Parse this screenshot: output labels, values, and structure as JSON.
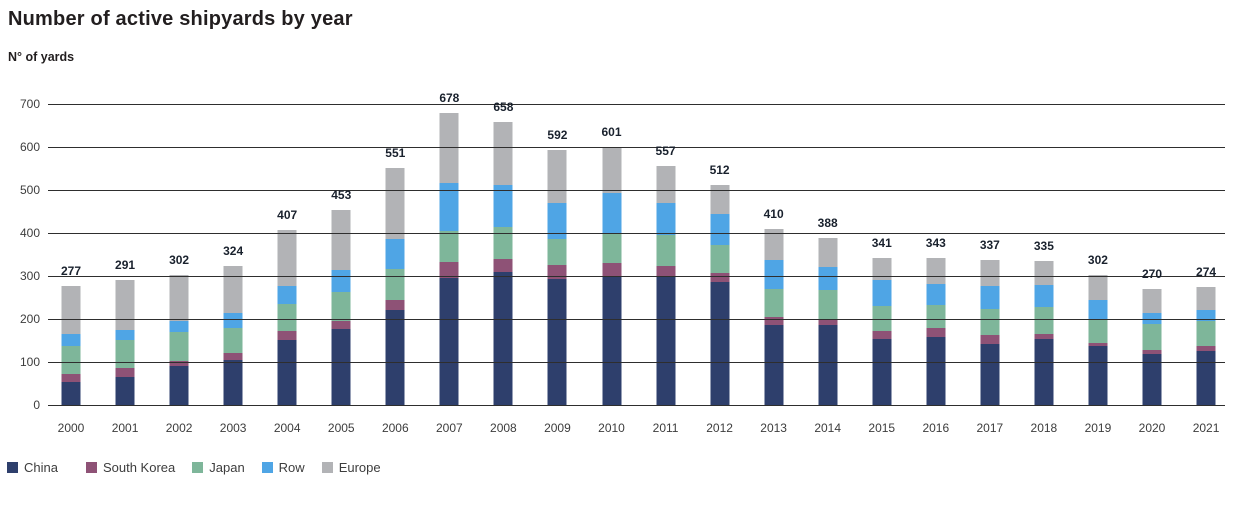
{
  "header": {
    "title": "Number of active shipyards by year",
    "subtitle": "N° of yards"
  },
  "chart_data": {
    "type": "bar",
    "stacked": true,
    "title": "Number of active shipyards by year",
    "ylabel": "N° of yards",
    "xlabel": "",
    "ylim": [
      0,
      700
    ],
    "yticks": [
      0,
      100,
      200,
      300,
      400,
      500,
      600,
      700
    ],
    "grid": true,
    "legend_position": "bottom",
    "categories": [
      "2000",
      "2001",
      "2002",
      "2003",
      "2004",
      "2005",
      "2006",
      "2007",
      "2008",
      "2009",
      "2010",
      "2011",
      "2012",
      "2013",
      "2014",
      "2015",
      "2016",
      "2017",
      "2018",
      "2019",
      "2020",
      "2021"
    ],
    "series": [
      {
        "name": "China",
        "color": "#2e3f6c",
        "values": [
          53,
          66,
          90,
          104,
          152,
          176,
          220,
          296,
          309,
          292,
          298,
          300,
          285,
          186,
          185,
          154,
          159,
          141,
          154,
          137,
          119,
          125
        ]
      },
      {
        "name": "South Korea",
        "color": "#8e5276",
        "values": [
          18,
          20,
          12,
          17,
          20,
          20,
          24,
          36,
          31,
          33,
          33,
          23,
          21,
          18,
          16,
          17,
          19,
          22,
          11,
          8,
          10,
          13
        ]
      },
      {
        "name": "Japan",
        "color": "#7eb69a",
        "values": [
          66,
          66,
          68,
          59,
          62,
          67,
          73,
          72,
          74,
          62,
          70,
          73,
          67,
          65,
          66,
          60,
          54,
          60,
          63,
          56,
          59,
          58
        ]
      },
      {
        "name": "Row",
        "color": "#4fa5e5",
        "values": [
          27,
          23,
          25,
          33,
          42,
          51,
          68,
          113,
          97,
          82,
          91,
          73,
          72,
          68,
          54,
          59,
          50,
          54,
          52,
          44,
          26,
          25
        ]
      },
      {
        "name": "Europe",
        "color": "#b2b3b6",
        "values": [
          113,
          116,
          107,
          111,
          131,
          139,
          166,
          161,
          147,
          123,
          109,
          88,
          67,
          73,
          67,
          51,
          61,
          60,
          55,
          57,
          56,
          53
        ]
      }
    ],
    "totals": [
      277,
      291,
      302,
      324,
      407,
      453,
      551,
      678,
      658,
      592,
      601,
      557,
      512,
      410,
      388,
      341,
      343,
      337,
      335,
      302,
      270,
      274
    ]
  },
  "legend": {
    "items": [
      {
        "label": "China",
        "color": "#2e3f6c"
      },
      {
        "label": "South Korea",
        "color": "#8e5276"
      },
      {
        "label": "Japan",
        "color": "#7eb69a"
      },
      {
        "label": "Row",
        "color": "#4fa5e5"
      },
      {
        "label": "Europe",
        "color": "#b2b3b6"
      }
    ]
  }
}
